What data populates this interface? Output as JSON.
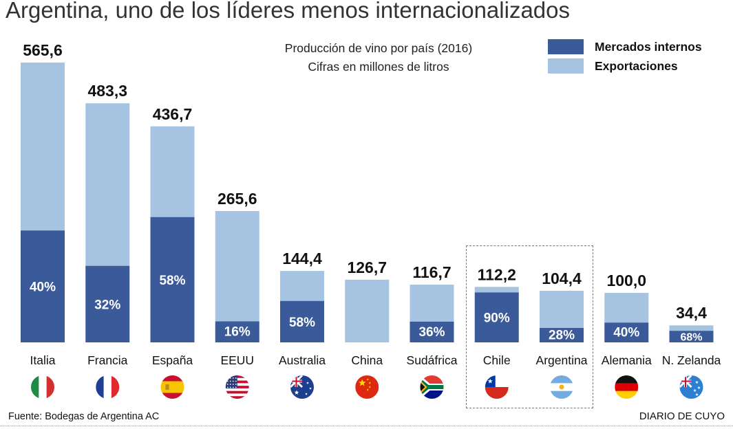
{
  "headline": "Argentina, uno de los líderes menos internacionalizados",
  "source": "Fuente: Bodegas de Argentina AC",
  "brand": "DIARIO DE CUYO",
  "colors": {
    "domestic": "#3b5a9a",
    "exports": "#a6c4e2"
  },
  "chart_data": {
    "type": "bar",
    "stacked": true,
    "title": "Producción de vino por país (2016)",
    "subtitle": "Cifras en millones de litros",
    "legend": {
      "placement": "top-right",
      "entries": [
        "Mercados internos",
        "Exportaciones"
      ]
    },
    "categories": [
      "Italia",
      "Francia",
      "España",
      "EEUU",
      "Australia",
      "China",
      "Sudáfrica",
      "Chile",
      "Argentina",
      "Alemania",
      "N. Zelanda"
    ],
    "totals": [
      565.6,
      483.3,
      436.7,
      265.6,
      144.4,
      126.7,
      116.7,
      112.2,
      104.4,
      100.0,
      34.4
    ],
    "total_labels": [
      "565,6",
      "483,3",
      "436,7",
      "265,6",
      "144,4",
      "126,7",
      "116,7",
      "112,2",
      "104,4",
      "100,0",
      "34,4"
    ],
    "domestic_share_percent": [
      40,
      32,
      58,
      16,
      58,
      null,
      36,
      90,
      28,
      40,
      68
    ],
    "domestic_share_labels": [
      "40%",
      "32%",
      "58%",
      "16%",
      "58%",
      "",
      "36%",
      "90%",
      "28%",
      "40%",
      "68%"
    ],
    "series": [
      {
        "name": "Mercados internos",
        "values": [
          226.2,
          154.7,
          253.3,
          42.5,
          83.8,
          0,
          42.0,
          101.0,
          29.2,
          40.0,
          23.4
        ]
      },
      {
        "name": "Exportaciones",
        "values": [
          339.4,
          328.6,
          183.4,
          223.1,
          60.6,
          126.7,
          74.7,
          11.2,
          75.2,
          60.0,
          11.0
        ]
      }
    ],
    "highlighted_categories": [
      "Chile",
      "Argentina"
    ],
    "flag_icons": [
      "italy-flag-icon",
      "france-flag-icon",
      "spain-flag-icon",
      "usa-flag-icon",
      "australia-flag-icon",
      "china-flag-icon",
      "south-africa-flag-icon",
      "chile-flag-icon",
      "argentina-flag-icon",
      "germany-flag-icon",
      "new-zealand-flag-icon"
    ],
    "ylim": [
      0,
      565.6
    ],
    "grid": false
  }
}
